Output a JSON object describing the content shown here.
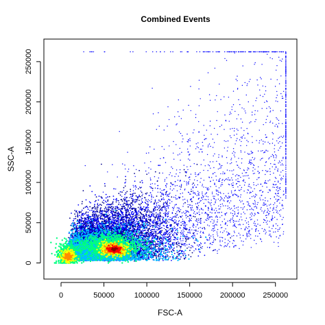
{
  "chart_data": {
    "type": "scatter",
    "title": "Combined Events",
    "xlabel": "FSC-A",
    "ylabel": "SSC-A",
    "xlim": [
      -20000,
      275000
    ],
    "ylim": [
      -20000,
      278000
    ],
    "x_ticks": [
      0,
      50000,
      100000,
      150000,
      200000,
      250000
    ],
    "y_ticks": [
      0,
      50000,
      100000,
      150000,
      200000,
      250000
    ],
    "grid": false,
    "legend": "none",
    "colormap": [
      "#00008b",
      "#0000ff",
      "#00bfff",
      "#00ff7f",
      "#adff2f",
      "#ffff00",
      "#ff8c00",
      "#ff0000",
      "#8b0000"
    ],
    "density_peaks": [
      {
        "x": 8000,
        "y": 8000
      },
      {
        "x": 62000,
        "y": 17000
      }
    ],
    "saturation": {
      "x_max": 262143,
      "y_max": 262143
    }
  }
}
